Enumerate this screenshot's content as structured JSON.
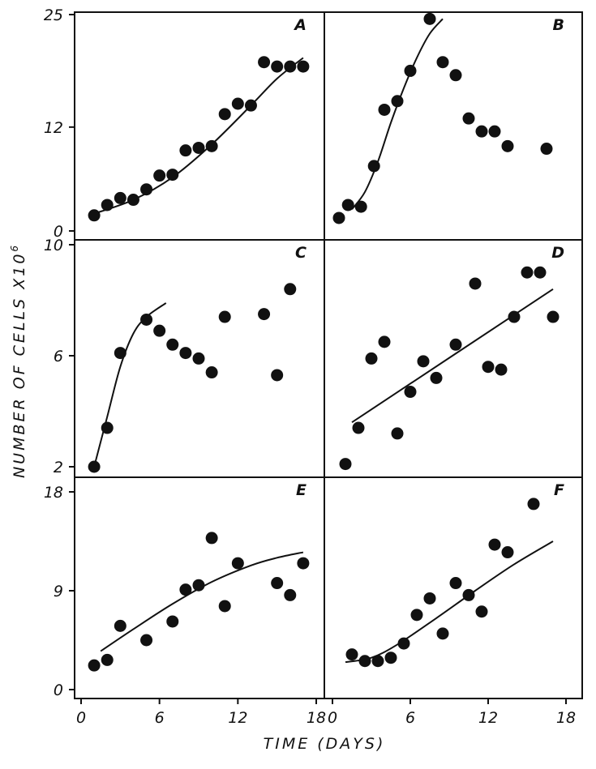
{
  "figure": {
    "ylabel": "NUMBER OF CELLS X10",
    "ylabel_exp": "6",
    "xlabel": "TIME (DAYS)"
  },
  "chart_data": [
    {
      "panel": "A",
      "type": "scatter",
      "column": 0,
      "row": 0,
      "xlim": [
        0,
        19
      ],
      "ylim": [
        0,
        25
      ],
      "yticks": [
        0,
        12,
        25
      ],
      "xticks": [],
      "x": [
        1,
        2,
        3,
        4,
        5,
        6,
        7,
        8,
        9,
        10,
        11,
        12,
        13,
        14,
        15,
        16,
        17
      ],
      "y": [
        1.8,
        3,
        3.8,
        3.6,
        4.8,
        6.4,
        6.5,
        9.3,
        9.6,
        9.8,
        13.5,
        14.7,
        14.5,
        19.5,
        19,
        19,
        19
      ],
      "fit": {
        "x": [
          1,
          4,
          7,
          10,
          13,
          15,
          17
        ],
        "y": [
          2,
          3.6,
          6.2,
          10,
          14.5,
          17.6,
          20
        ]
      }
    },
    {
      "panel": "B",
      "type": "scatter",
      "column": 1,
      "row": 0,
      "xlim": [
        0,
        19
      ],
      "ylim": [
        0,
        25
      ],
      "yticks": [],
      "xticks": [],
      "x": [
        0.5,
        1.2,
        2.2,
        3.2,
        4,
        5,
        6,
        7.5,
        8.5,
        9.5,
        10.5,
        11.5,
        12.5,
        13.5,
        16.5
      ],
      "y": [
        1.5,
        3,
        2.8,
        7.5,
        14,
        15,
        18.5,
        24.5,
        19.5,
        18,
        13,
        11.5,
        11.5,
        9.8,
        9.5
      ],
      "fit": {
        "x": [
          1.5,
          2.5,
          3.5,
          4.5,
          5.5,
          6.5,
          7.5,
          8.5
        ],
        "y": [
          2.5,
          4.5,
          8,
          12.5,
          16.5,
          20,
          22.8,
          24.5
        ]
      }
    },
    {
      "panel": "C",
      "type": "scatter",
      "column": 0,
      "row": 1,
      "xlim": [
        0,
        19
      ],
      "ylim": [
        2,
        10
      ],
      "yticks": [
        2,
        6,
        10
      ],
      "xticks": [],
      "x": [
        1,
        2,
        3,
        5,
        6,
        7,
        8,
        9,
        10,
        11,
        14,
        15,
        16
      ],
      "y": [
        2,
        3.4,
        6.1,
        7.3,
        6.9,
        6.4,
        6.1,
        5.9,
        5.4,
        7.4,
        7.5,
        5.3,
        8.4
      ],
      "fit": {
        "x": [
          1,
          2,
          3,
          4,
          5,
          6.5
        ],
        "y": [
          2,
          3.8,
          5.6,
          6.8,
          7.4,
          7.9
        ]
      }
    },
    {
      "panel": "D",
      "type": "scatter",
      "column": 1,
      "row": 1,
      "xlim": [
        0,
        19
      ],
      "ylim": [
        2,
        10
      ],
      "yticks": [],
      "xticks": [],
      "x": [
        1,
        2,
        3,
        4,
        5,
        6,
        7,
        8,
        9.5,
        11,
        12,
        13,
        14,
        15,
        16,
        17
      ],
      "y": [
        2.1,
        3.4,
        5.9,
        6.5,
        3.2,
        4.7,
        5.8,
        5.2,
        6.4,
        8.6,
        5.6,
        5.5,
        7.4,
        9,
        9,
        7.4
      ],
      "fit": {
        "x": [
          1.5,
          17
        ],
        "y": [
          3.6,
          8.4
        ]
      }
    },
    {
      "panel": "E",
      "type": "scatter",
      "column": 0,
      "row": 2,
      "xlim": [
        0,
        19
      ],
      "ylim": [
        0,
        18
      ],
      "yticks": [
        0,
        9,
        18
      ],
      "xticks": [
        0,
        6,
        12,
        18
      ],
      "x": [
        1,
        2,
        3,
        5,
        7,
        8,
        9,
        10,
        11,
        12,
        15,
        16,
        17
      ],
      "y": [
        2.2,
        2.7,
        5.8,
        4.5,
        6.2,
        9.1,
        9.5,
        13.8,
        7.6,
        11.5,
        9.7,
        8.6,
        11.5
      ],
      "fit": {
        "x": [
          1.5,
          4,
          7,
          10,
          13,
          15,
          17
        ],
        "y": [
          3.5,
          5.5,
          7.8,
          9.8,
          11.3,
          12,
          12.5
        ]
      }
    },
    {
      "panel": "F",
      "type": "scatter",
      "column": 1,
      "row": 2,
      "xlim": [
        0,
        19
      ],
      "ylim": [
        0,
        18
      ],
      "yticks": [],
      "xticks": [
        0,
        6,
        12,
        18
      ],
      "x": [
        1.5,
        2.5,
        3.5,
        4.5,
        5.5,
        6.5,
        7.5,
        8.5,
        9.5,
        10.5,
        11.5,
        12.5,
        13.5,
        15.5
      ],
      "y": [
        3.2,
        2.6,
        2.6,
        2.9,
        4.2,
        6.8,
        8.3,
        5.1,
        9.7,
        8.6,
        7.1,
        13.2,
        12.5,
        16.9
      ],
      "fit": {
        "x": [
          1,
          3,
          5,
          8,
          11,
          14,
          17
        ],
        "y": [
          2.5,
          2.9,
          4.1,
          6.5,
          9,
          11.4,
          13.5
        ]
      }
    }
  ]
}
